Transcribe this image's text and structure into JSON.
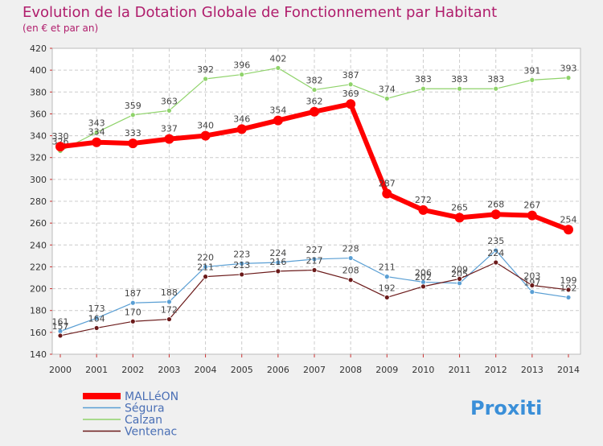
{
  "chart_data": {
    "type": "line",
    "title": "Evolution de la Dotation Globale de Fonctionnement par Habitant",
    "subtitle": "(en € et par an)",
    "xlabel": "",
    "ylabel": "",
    "ylim": [
      140,
      420
    ],
    "yticks": [
      140,
      160,
      180,
      200,
      220,
      240,
      260,
      280,
      300,
      320,
      340,
      360,
      380,
      400,
      420
    ],
    "categories": [
      "2000",
      "2001",
      "2002",
      "2003",
      "2004",
      "2005",
      "2006",
      "2007",
      "2008",
      "2009",
      "2010",
      "2011",
      "2012",
      "2013",
      "2014"
    ],
    "grid": true,
    "legend_position": "bottom-left",
    "series": [
      {
        "name": "Calzan",
        "color": "#8fd36a",
        "values": [
          326,
          343,
          359,
          363,
          392,
          396,
          402,
          382,
          387,
          374,
          383,
          383,
          383,
          391,
          393
        ]
      },
      {
        "name": "Ségura",
        "color": "#5a9fd4",
        "values": [
          161,
          173,
          187,
          188,
          220,
          223,
          224,
          227,
          228,
          211,
          206,
          205,
          235,
          197,
          192
        ]
      },
      {
        "name": "Ventenac",
        "color": "#6b1a1a",
        "values": [
          157,
          164,
          170,
          172,
          211,
          213,
          216,
          217,
          208,
          192,
          202,
          209,
          224,
          203,
          199
        ]
      },
      {
        "name": "MALLéON",
        "color": "#ff0000",
        "values": [
          330,
          334,
          333,
          337,
          340,
          346,
          354,
          362,
          369,
          287,
          272,
          265,
          268,
          267,
          254
        ]
      }
    ],
    "logo": "Proxiti"
  }
}
